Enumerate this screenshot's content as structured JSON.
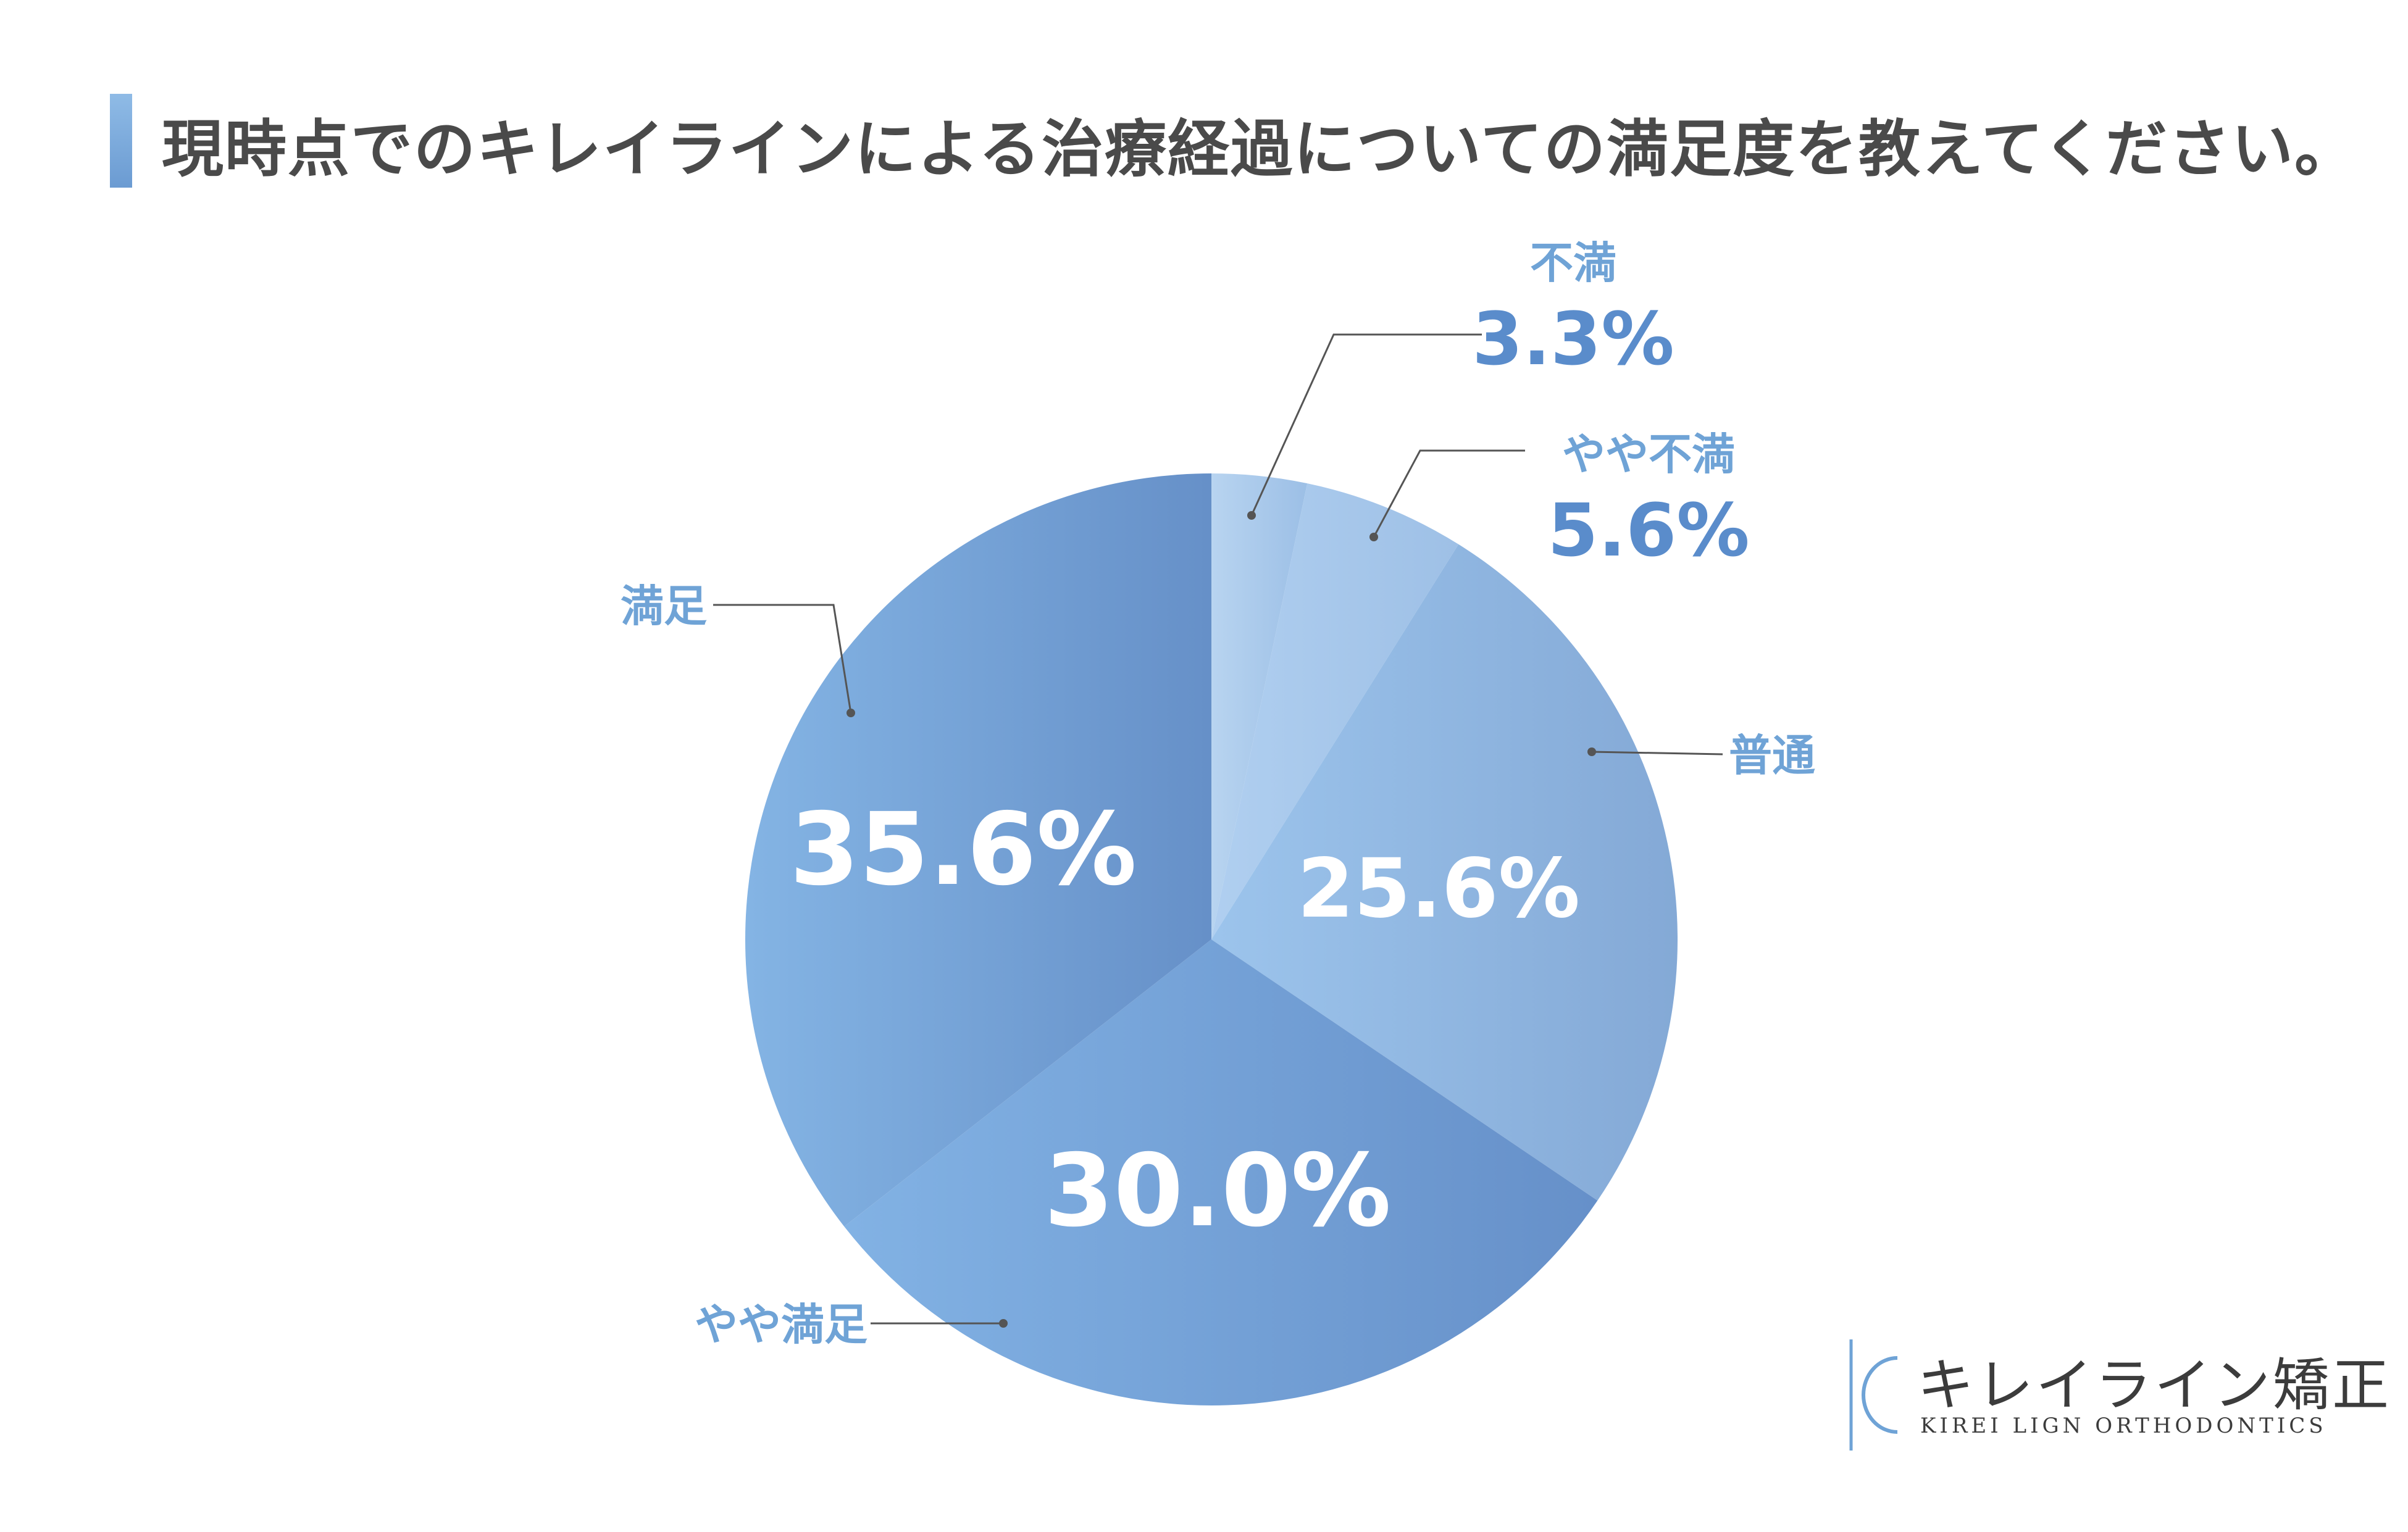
{
  "title": "現時点でのキレイラインによる治療経過についての満足度を教えてください。",
  "brand": {
    "name_jp": "キレイライン矯正",
    "name_en": "KIREI LIGN ORTHODONTICS"
  },
  "colors": {
    "accent": "#6b9bd2",
    "label_text": "#6fa3d6",
    "percent_text": "#5a8ccb",
    "title_text": "#4a4a4a"
  },
  "chart_data": {
    "type": "pie",
    "start_angle": "12 o'clock, clockwise",
    "slices": [
      {
        "label": "不満",
        "value": 3.3,
        "display": "3.3%",
        "color": "#a9c8ea"
      },
      {
        "label": "やや不満",
        "value": 5.6,
        "display": "5.6%",
        "color": "#9dc2ea"
      },
      {
        "label": "普通",
        "value": 25.6,
        "display": "25.6%",
        "color": "#8ab4e0"
      },
      {
        "label": "やや満足",
        "value": 30.0,
        "display": "30.0%",
        "color": "#76a6dc"
      },
      {
        "label": "満足",
        "value": 35.6,
        "display": "35.6%",
        "color": "#6e9ed6"
      }
    ]
  }
}
